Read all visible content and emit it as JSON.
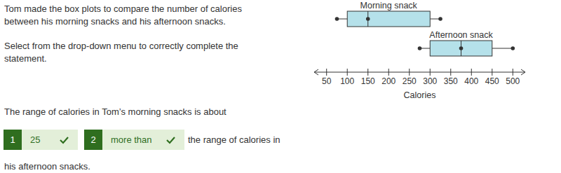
{
  "question": {
    "intro": [
      "Tom made the box plots to compare the number of calories",
      "between his morning snacks and his afternoon snacks."
    ],
    "instruction": [
      "Select from the drop-down menu to correctly complete the",
      "statement."
    ],
    "statement_start": "The range of calories in Tom’s morning snacks is about",
    "answers": [
      {
        "number": "1",
        "text": "25"
      },
      {
        "number": "2",
        "text": "more than"
      }
    ],
    "statement_middle": "the range of calories in",
    "statement_end": "his afternoon snacks."
  },
  "chart_data": {
    "type": "box",
    "x_label": "Calories",
    "xlim": [
      20,
      530
    ],
    "xticks": [
      50,
      100,
      150,
      200,
      250,
      300,
      350,
      400,
      450,
      500
    ],
    "color": "#b5e1ea",
    "series": [
      {
        "name": "Morning snack",
        "values": {
          "min": 75,
          "q1": 100,
          "median": 150,
          "q3": 300,
          "max": 325
        }
      },
      {
        "name": "Afternoon snack",
        "values": {
          "min": 275,
          "q1": 300,
          "median": 375,
          "q3": 450,
          "max": 500
        }
      }
    ]
  }
}
